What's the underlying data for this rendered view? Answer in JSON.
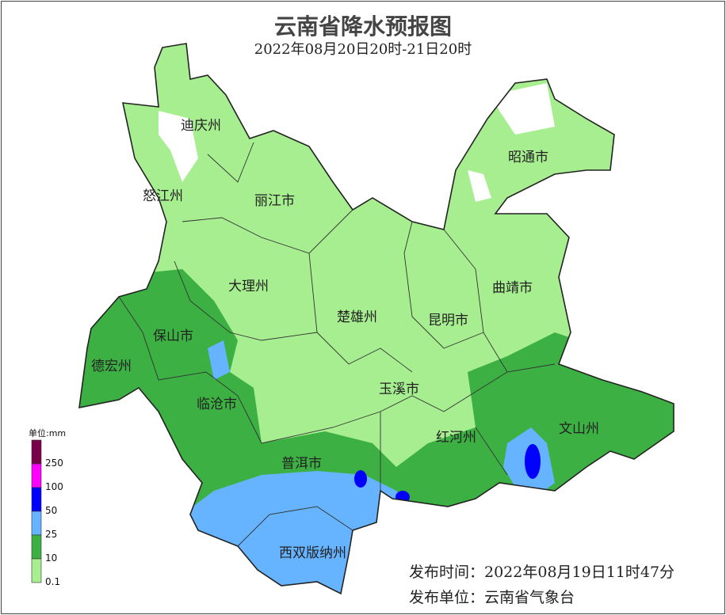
{
  "title": "云南省降水预报图",
  "subtitle": "2022年08月20日20时-21日20时",
  "regions": [
    {
      "name": "迪庆州"
    },
    {
      "name": "怒江州"
    },
    {
      "name": "丽江市"
    },
    {
      "name": "昭通市"
    },
    {
      "name": "大理州"
    },
    {
      "name": "保山市"
    },
    {
      "name": "德宏州"
    },
    {
      "name": "楚雄州"
    },
    {
      "name": "昆明市"
    },
    {
      "name": "曲靖市"
    },
    {
      "name": "玉溪市"
    },
    {
      "name": "临沧市"
    },
    {
      "name": "红河州"
    },
    {
      "name": "文山州"
    },
    {
      "name": "普洱市"
    },
    {
      "name": "西双版纳州"
    }
  ],
  "legend": {
    "title": "单位:mm",
    "ticks": [
      "250",
      "100",
      "50",
      "25",
      "10",
      "0.1"
    ],
    "colors": [
      "#7a0049",
      "#ff00ff",
      "#0000ff",
      "#66b3ff",
      "#3cb043",
      "#a6ee8f"
    ]
  },
  "publish": {
    "time": "发布时间：2022年08月19日11时47分",
    "unit": "发布单位：云南省气象台"
  }
}
